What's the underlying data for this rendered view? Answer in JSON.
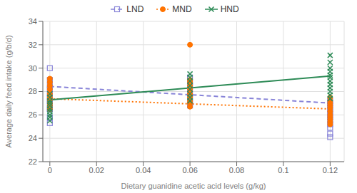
{
  "chart_data": {
    "type": "scatter",
    "xlabel": "Dietary guanidine acetic acid levels (g/kg)",
    "ylabel": "Average daily feed intake (g/b/d)",
    "xlim": [
      -0.003,
      0.126
    ],
    "ylim": [
      22,
      34
    ],
    "xticks": [
      0,
      0.02,
      0.04,
      0.06,
      0.08,
      0.1,
      0.12
    ],
    "yticks": [
      22,
      24,
      26,
      28,
      30,
      32,
      34
    ],
    "grid": true,
    "legend": "top",
    "series": [
      {
        "name": "LND",
        "marker": "square",
        "x": [
          0,
          0,
          0,
          0,
          0,
          0,
          0,
          0,
          0,
          0,
          0,
          0,
          0.06,
          0.06,
          0.06,
          0.06,
          0.06,
          0.06,
          0.06,
          0.06,
          0.06,
          0.12,
          0.12,
          0.12,
          0.12,
          0.12,
          0.12,
          0.12,
          0.12,
          0.12,
          0.12,
          0.12,
          0.12
        ],
        "values": [
          30.0,
          29.0,
          28.5,
          28.2,
          27.8,
          27.5,
          27.2,
          27.0,
          26.5,
          26.5,
          25.8,
          25.3,
          29.2,
          28.8,
          28.5,
          28.2,
          27.8,
          27.5,
          27.2,
          27.0,
          26.8,
          27.2,
          27.0,
          26.8,
          26.5,
          26.3,
          26.0,
          25.8,
          25.5,
          25.2,
          24.9,
          24.4,
          24.1
        ],
        "fit": {
          "x": [
            0,
            0.12
          ],
          "values": [
            28.433,
            27.01304
          ],
          "line_style": "dashed"
        }
      },
      {
        "name": "MND",
        "marker": "circle",
        "x": [
          0,
          0,
          0,
          0,
          0,
          0,
          0,
          0,
          0,
          0,
          0.06,
          0.06,
          0.06,
          0.06,
          0.06,
          0.06,
          0.06,
          0.06,
          0.06,
          0.06,
          0.12,
          0.12,
          0.12,
          0.12,
          0.12,
          0.12,
          0.12,
          0.12,
          0.12,
          0.12,
          0.12
        ],
        "values": [
          29.1,
          28.8,
          28.5,
          28.2,
          27.8,
          27.5,
          27.3,
          27.0,
          26.8,
          26.5,
          32.0,
          29.0,
          28.8,
          28.5,
          28.2,
          27.8,
          27.5,
          27.2,
          27.0,
          26.7,
          27.5,
          27.2,
          27.0,
          26.8,
          26.6,
          26.3,
          26.0,
          25.8,
          25.6,
          25.4,
          25.2
        ],
        "fit": {
          "x": [
            0,
            0.12
          ],
          "values": [
            27.38,
            26.50796
          ],
          "line_style": "dotted"
        }
      },
      {
        "name": "HND",
        "marker": "x",
        "x": [
          0,
          0,
          0,
          0,
          0,
          0,
          0,
          0,
          0,
          0,
          0.06,
          0.06,
          0.06,
          0.06,
          0.06,
          0.06,
          0.06,
          0.06,
          0.12,
          0.12,
          0.12,
          0.12,
          0.12,
          0.12,
          0.12,
          0.12,
          0.12,
          0.12,
          0.12,
          0.12
        ],
        "values": [
          27.8,
          27.5,
          27.2,
          27.0,
          26.8,
          26.5,
          26.3,
          26.0,
          25.8,
          25.5,
          29.5,
          29.2,
          28.9,
          28.5,
          28.2,
          27.8,
          27.5,
          27.2,
          31.1,
          30.5,
          30.0,
          29.7,
          29.4,
          29.2,
          28.9,
          28.6,
          28.3,
          28.0,
          27.7,
          27.4
        ],
        "fit": {
          "x": [
            0,
            0.12
          ],
          "values": [
            27.291,
            29.32296
          ],
          "line_style": "solid"
        }
      }
    ]
  }
}
